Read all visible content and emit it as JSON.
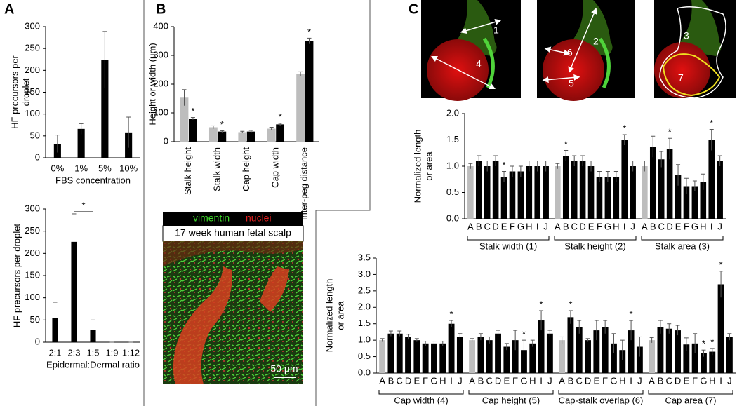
{
  "panels": [
    "A",
    "B",
    "C"
  ],
  "micrograph": {
    "stain_green": "vimentin",
    "stain_red": "nuclei",
    "caption": "17 week human fetal scalp",
    "scale_bar": "50 μm"
  },
  "measure_labels": [
    "1",
    "2",
    "3",
    "4",
    "5",
    "6",
    "7"
  ],
  "chart_data": [
    {
      "type": "bar",
      "ylabel": [
        "HF precursors per",
        "droplet"
      ],
      "xlabel": "FBS concentration",
      "categories": [
        "0%",
        "1%",
        "5%",
        "10%"
      ],
      "values": [
        32,
        66,
        224,
        58
      ],
      "errors": [
        20,
        12,
        65,
        35
      ],
      "color": "#000000",
      "ylim": [
        0,
        300
      ],
      "yticks": [
        0,
        50,
        100,
        150,
        200,
        250,
        300
      ]
    },
    {
      "type": "bar",
      "ylabel": [
        "HF precursors per droplet"
      ],
      "xlabel": "Epidermal:Dermal ratio",
      "categories": [
        "2:1",
        "2:3",
        "1:5",
        "1:9",
        "1:12"
      ],
      "values": [
        55,
        226,
        28,
        0,
        0
      ],
      "errors": [
        35,
        63,
        22,
        0,
        0
      ],
      "annotation": "*",
      "color": "#000000",
      "ylim": [
        0,
        300
      ],
      "yticks": [
        0,
        50,
        100,
        150,
        200,
        250,
        300
      ]
    },
    {
      "type": "bar",
      "ylabel": [
        "Height or width (μm)"
      ],
      "categories": [
        "Stalk height",
        "Stalk width",
        "Cap height",
        "Cap width",
        "Inter-peg distance"
      ],
      "series": [
        {
          "color": "#bdbdbd",
          "values": [
            153,
            50,
            33,
            45,
            235
          ],
          "errors": [
            28,
            5,
            3,
            5,
            8
          ]
        },
        {
          "color": "#000000",
          "values": [
            80,
            35,
            35,
            60,
            350
          ],
          "errors": [
            4,
            3,
            4,
            4,
            10
          ],
          "stars": [
            "*",
            "*",
            null,
            "*",
            "*"
          ]
        }
      ],
      "ylim": [
        0,
        400
      ],
      "yticks": [
        0,
        100,
        200,
        300,
        400
      ]
    },
    {
      "type": "grouped-bar",
      "ylabel": [
        "Normalized length",
        "or area"
      ],
      "categories": [
        "A",
        "B",
        "C",
        "D",
        "E",
        "F",
        "G",
        "H",
        "I",
        "J"
      ],
      "bar_colors": [
        "#bdbdbd",
        "#000000",
        "#000000",
        "#000000",
        "#000000",
        "#000000",
        "#000000",
        "#000000",
        "#000000",
        "#000000"
      ],
      "groups": [
        {
          "name": "Stalk width (1)",
          "values": [
            1.0,
            1.1,
            1.0,
            1.1,
            0.8,
            0.9,
            0.9,
            1.0,
            1.0,
            1.0
          ],
          "errors": [
            0.05,
            0.1,
            0.1,
            0.1,
            0.1,
            0.1,
            0.1,
            0.1,
            0.1,
            0.1
          ],
          "stars": [
            null,
            null,
            null,
            null,
            "*",
            null,
            null,
            null,
            null,
            null
          ]
        },
        {
          "name": "Stalk height (2)",
          "values": [
            1.0,
            1.2,
            1.1,
            1.1,
            1.0,
            0.8,
            0.8,
            0.8,
            1.5,
            1.0
          ],
          "errors": [
            0.05,
            0.1,
            0.1,
            0.1,
            0.1,
            0.1,
            0.1,
            0.1,
            0.1,
            0.1
          ],
          "stars": [
            null,
            "*",
            null,
            null,
            null,
            null,
            null,
            null,
            "*",
            null
          ]
        },
        {
          "name": "Stalk area (3)",
          "values": [
            1.0,
            1.37,
            1.13,
            1.33,
            0.83,
            0.62,
            0.62,
            0.7,
            1.5,
            1.1
          ],
          "errors": [
            0.1,
            0.2,
            0.15,
            0.2,
            0.2,
            0.15,
            0.1,
            0.15,
            0.2,
            0.1
          ],
          "stars": [
            null,
            null,
            null,
            "*",
            null,
            null,
            null,
            null,
            "*",
            null
          ]
        }
      ],
      "ylim": [
        0,
        2
      ],
      "yticks": [
        {
          "value": 0,
          "label": "0.0"
        },
        0.5,
        {
          "value": 1,
          "label": "1.0"
        },
        1.5,
        {
          "value": 2,
          "label": "2.0"
        }
      ]
    },
    {
      "type": "grouped-bar",
      "ylabel": [
        "Normalized length",
        "or area"
      ],
      "categories": [
        "A",
        "B",
        "C",
        "D",
        "E",
        "F",
        "G",
        "H",
        "I",
        "J"
      ],
      "bar_colors": [
        "#bdbdbd",
        "#000000",
        "#000000",
        "#000000",
        "#000000",
        "#000000",
        "#000000",
        "#000000",
        "#000000",
        "#000000"
      ],
      "groups": [
        {
          "name": "Cap width (4)",
          "values": [
            1.0,
            1.2,
            1.2,
            1.1,
            1.0,
            0.9,
            0.9,
            0.9,
            1.5,
            1.1
          ],
          "errors": [
            0.05,
            0.08,
            0.08,
            0.08,
            0.05,
            0.07,
            0.07,
            0.07,
            0.1,
            0.1
          ],
          "stars": [
            null,
            null,
            null,
            null,
            null,
            null,
            null,
            null,
            "*",
            null
          ]
        },
        {
          "name": "Cap height (5)",
          "values": [
            1.0,
            1.1,
            1.0,
            1.2,
            0.8,
            1.0,
            0.7,
            0.9,
            1.6,
            1.2
          ],
          "errors": [
            0.05,
            0.1,
            0.1,
            0.1,
            0.1,
            0.3,
            0.3,
            0.1,
            0.3,
            0.1
          ],
          "stars": [
            null,
            null,
            null,
            null,
            null,
            null,
            "*",
            null,
            "*",
            null
          ]
        },
        {
          "name": "Cap-stalk overlap (6)",
          "values": [
            1.0,
            1.7,
            1.4,
            1.0,
            1.3,
            1.4,
            0.9,
            0.7,
            1.3,
            0.8
          ],
          "errors": [
            0.1,
            0.2,
            0.2,
            0.05,
            0.3,
            0.2,
            0.3,
            0.3,
            0.3,
            0.3
          ],
          "stars": [
            null,
            "*",
            null,
            null,
            null,
            null,
            null,
            null,
            "*",
            null
          ]
        },
        {
          "name": "Cap area (7)",
          "values": [
            1.0,
            1.4,
            1.35,
            1.3,
            0.87,
            0.9,
            0.6,
            0.65,
            2.7,
            1.1
          ],
          "errors": [
            0.08,
            0.2,
            0.15,
            0.15,
            0.2,
            0.3,
            0.1,
            0.1,
            0.4,
            0.1
          ],
          "stars": [
            null,
            null,
            null,
            null,
            null,
            null,
            "*",
            "*",
            "*",
            null
          ]
        }
      ],
      "ylim": [
        0,
        3.5
      ],
      "yticks": [
        {
          "value": 0,
          "label": "0.0"
        },
        0.5,
        {
          "value": 1,
          "label": "1.0"
        },
        1.5,
        {
          "value": 2,
          "label": "2.0"
        },
        2.5,
        {
          "value": 3,
          "label": "3.0"
        },
        3.5
      ]
    }
  ]
}
